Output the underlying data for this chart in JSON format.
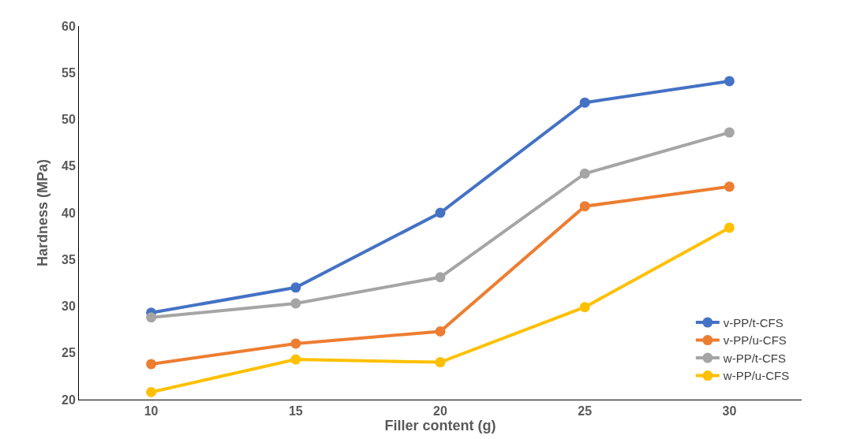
{
  "chart_data": {
    "type": "line",
    "xlabel": "Filler content (g)",
    "ylabel": "Hardness (MPa)",
    "categories": [
      "10",
      "15",
      "20",
      "25",
      "30"
    ],
    "series": [
      {
        "name": "v-PP/t-CFS",
        "color": "#4472c4",
        "values": [
          29.3,
          32.0,
          40.0,
          51.8,
          54.1
        ]
      },
      {
        "name": "v-PP/u-CFS",
        "color": "#ed7d31",
        "values": [
          23.8,
          26.0,
          27.3,
          40.7,
          42.8
        ]
      },
      {
        "name": "w-PP/t-CFS",
        "color": "#a5a5a5",
        "values": [
          28.8,
          30.3,
          33.1,
          44.2,
          48.6
        ]
      },
      {
        "name": "w-PP/u-CFS",
        "color": "#ffc000",
        "values": [
          20.8,
          24.3,
          24.0,
          29.9,
          38.4
        ]
      }
    ],
    "ylim": [
      20,
      60
    ],
    "yticks": [
      20,
      25,
      30,
      35,
      40,
      45,
      50,
      55,
      60
    ],
    "grid": false,
    "legend": "bottom right",
    "marker": "circle",
    "line_style": "solid"
  }
}
